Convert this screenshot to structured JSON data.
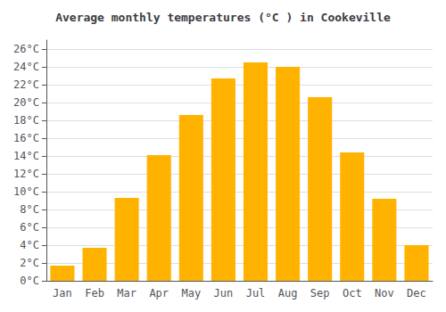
{
  "chart_data": {
    "type": "bar",
    "title": "Average monthly temperatures (°C ) in Cookeville",
    "categories": [
      "Jan",
      "Feb",
      "Mar",
      "Apr",
      "May",
      "Jun",
      "Jul",
      "Aug",
      "Sep",
      "Oct",
      "Nov",
      "Dec"
    ],
    "values": [
      1.7,
      3.7,
      9.3,
      14.1,
      18.6,
      22.7,
      24.5,
      24.0,
      20.6,
      14.4,
      9.2,
      4.0
    ],
    "color": "#FFB300",
    "ylim": [
      0,
      27
    ],
    "yticks": [
      {
        "value": 0,
        "label": "0°C"
      },
      {
        "value": 2,
        "label": "2°C"
      },
      {
        "value": 4,
        "label": "4°C"
      },
      {
        "value": 6,
        "label": "6°C"
      },
      {
        "value": 8,
        "label": "8°C"
      },
      {
        "value": 10,
        "label": "10°C"
      },
      {
        "value": 12,
        "label": "12°C"
      },
      {
        "value": 14,
        "label": "14°C"
      },
      {
        "value": 16,
        "label": "16°C"
      },
      {
        "value": 18,
        "label": "18°C"
      },
      {
        "value": 20,
        "label": "20°C"
      },
      {
        "value": 22,
        "label": "22°C"
      },
      {
        "value": 24,
        "label": "24°C"
      },
      {
        "value": 26,
        "label": "26°C"
      }
    ],
    "grid": true
  }
}
